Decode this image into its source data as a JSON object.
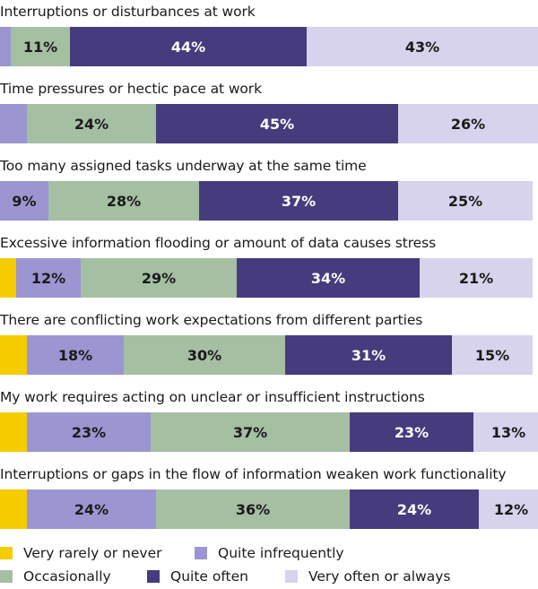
{
  "chart_data": {
    "type": "bar",
    "orientation": "horizontal",
    "stacked": true,
    "value_unit": "%",
    "categories": [
      "Interruptions or disturbances at work",
      "Time pressures or hectic pace at work",
      "Too many assigned tasks underway at the same time",
      "Excessive information flooding or amount of data causes stress",
      "There are conflicting work expectations from different parties",
      "My work requires acting on unclear or insufficient instructions",
      "Interruptions or gaps in the flow of information weaken work functionality"
    ],
    "series": [
      {
        "name": "Very rarely or never",
        "color": "#f5cc00",
        "text_color": "#1a1a1a",
        "values": [
          0,
          0,
          0,
          3,
          5,
          5,
          5
        ]
      },
      {
        "name": "Quite infrequently",
        "color": "#9b95d1",
        "text_color": "#1a1a1a",
        "values": [
          2,
          5,
          9,
          12,
          18,
          23,
          24
        ]
      },
      {
        "name": "Occasionally",
        "color": "#a5bfa3",
        "text_color": "#1a1a1a",
        "values": [
          11,
          24,
          28,
          29,
          30,
          37,
          36
        ]
      },
      {
        "name": "Quite often",
        "color": "#463b7c",
        "text_color": "#ffffff",
        "values": [
          44,
          45,
          37,
          34,
          31,
          23,
          24
        ]
      },
      {
        "name": "Very often or always",
        "color": "#d7d3ec",
        "text_color": "#1a1a1a",
        "values": [
          43,
          26,
          25,
          21,
          15,
          13,
          12
        ]
      }
    ],
    "legend_position": "bottom",
    "xlim": [
      0,
      100
    ],
    "grid": false
  }
}
